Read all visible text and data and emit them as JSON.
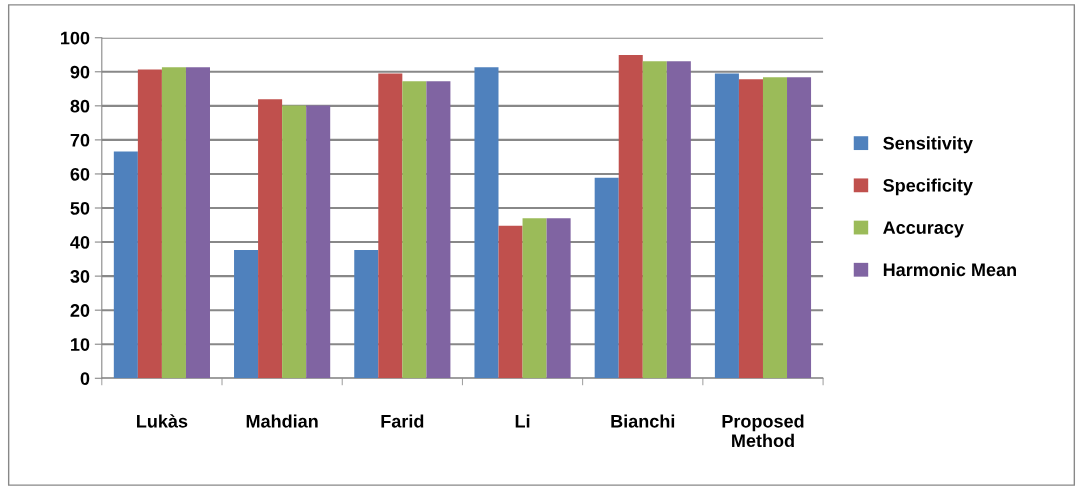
{
  "chart_data": {
    "type": "bar",
    "categories": [
      "Lukàs",
      "Mahdian",
      "Farid",
      "Li",
      "Bianchi",
      "Proposed\nMethod"
    ],
    "series": [
      {
        "name": "Sensitivity",
        "color": "#4f81bd",
        "values": [
          66.6,
          37.7,
          37.7,
          91.3,
          58.9,
          89.5
        ]
      },
      {
        "name": "Specificity",
        "color": "#c0504d",
        "values": [
          90.7,
          81.9,
          89.5,
          44.8,
          94.9,
          87.8
        ]
      },
      {
        "name": "Accuracy",
        "color": "#9bbb59",
        "values": [
          91.3,
          80.1,
          87.2,
          47.0,
          93.1,
          88.4
        ]
      },
      {
        "name": "Harmonic Mean",
        "color": "#8064a2",
        "values": [
          91.3,
          80.1,
          87.2,
          47.0,
          93.1,
          88.4
        ]
      }
    ],
    "ylim": [
      0,
      100
    ],
    "yticks": [
      0,
      10,
      20,
      30,
      40,
      50,
      60,
      70,
      80,
      90,
      100
    ],
    "grid": "y",
    "legend": "right"
  }
}
